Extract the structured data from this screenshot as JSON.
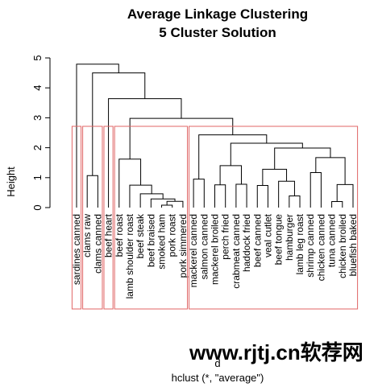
{
  "chart_data": {
    "type": "dendrogram",
    "title": "Average Linkage Clustering",
    "subtitle": "5 Cluster Solution",
    "ylabel": "Height",
    "xlabel": "d",
    "sub": "hclust (*, \"average\")",
    "ylim": [
      0,
      5
    ],
    "yticks": [
      0,
      1,
      2,
      3,
      4,
      5
    ],
    "leaves": [
      "sardines canned",
      "clams raw",
      "clams canned",
      "beef heart",
      "beef roast",
      "lamb shoulder roast",
      "beef steak",
      "beef braised",
      "smoked ham",
      "pork roast",
      "pork simmered",
      "mackerel canned",
      "salmon canned",
      "mackerel broiled",
      "perch fried",
      "crabmeat canned",
      "haddock fried",
      "beef canned",
      "veal cutlet",
      "beef tongue",
      "hamburger",
      "lamb leg roast",
      "shrimp canned",
      "chicken canned",
      "tuna canned",
      "chicken broiled",
      "bluefish baked"
    ],
    "merges": [
      {
        "a": "clams raw",
        "b": "clams canned",
        "height": 1.07
      },
      {
        "a": "smoked ham",
        "b": "pork roast",
        "height": 0.08
      },
      {
        "a": "merge:1",
        "b": "pork simmered",
        "height": 0.21
      },
      {
        "a": "beef braised",
        "b": "merge:2",
        "height": 0.29
      },
      {
        "a": "beef steak",
        "b": "merge:3",
        "height": 0.46
      },
      {
        "a": "lamb shoulder roast",
        "b": "merge:4",
        "height": 0.75
      },
      {
        "a": "beef roast",
        "b": "merge:5",
        "height": 1.62
      },
      {
        "a": "mackerel broiled",
        "b": "perch fried",
        "height": 0.76
      },
      {
        "a": "crabmeat canned",
        "b": "haddock fried",
        "height": 0.78
      },
      {
        "a": "beef canned",
        "b": "veal cutlet",
        "height": 0.74
      },
      {
        "a": "hamburger",
        "b": "lamb leg roast",
        "height": 0.39
      },
      {
        "a": "beef tongue",
        "b": "merge:10",
        "height": 0.88
      },
      {
        "a": "merge:9",
        "b": "merge:11",
        "height": 1.28
      },
      {
        "a": "tuna canned",
        "b": "chicken broiled",
        "height": 0.2
      },
      {
        "a": "merge:13",
        "b": "bluefish baked",
        "height": 0.77
      },
      {
        "a": "shrimp canned",
        "b": "chicken canned",
        "height": 1.17
      },
      {
        "a": "merge:15",
        "b": "merge:14",
        "height": 1.67
      },
      {
        "a": "merge:12",
        "b": "merge:16",
        "height": 1.99
      },
      {
        "a": "merge:7",
        "b": "merge:8",
        "height": 1.4
      },
      {
        "a": "merge:17",
        "b": "merge:18",
        "height": 2.15
      },
      {
        "a": "mackerel canned",
        "b": "salmon canned",
        "height": 0.95
      },
      {
        "a": "merge:20",
        "b": "merge:19",
        "height": 2.43
      },
      {
        "a": "merge:6",
        "b": "merge:21",
        "height": 2.98
      },
      {
        "a": "beef heart",
        "b": "merge:22",
        "height": 3.64
      },
      {
        "a": "merge:0",
        "b": "merge:23",
        "height": 4.5
      },
      {
        "a": "sardines canned",
        "b": "merge:24",
        "height": 4.79
      }
    ],
    "clusters": [
      {
        "first": 0,
        "last": 0
      },
      {
        "first": 1,
        "last": 2
      },
      {
        "first": 3,
        "last": 3
      },
      {
        "first": 4,
        "last": 10
      },
      {
        "first": 11,
        "last": 26
      }
    ],
    "cluster_border_color": "#e06666",
    "line_color": "#000000"
  },
  "watermark": "www.rjtj.cn软荐网"
}
